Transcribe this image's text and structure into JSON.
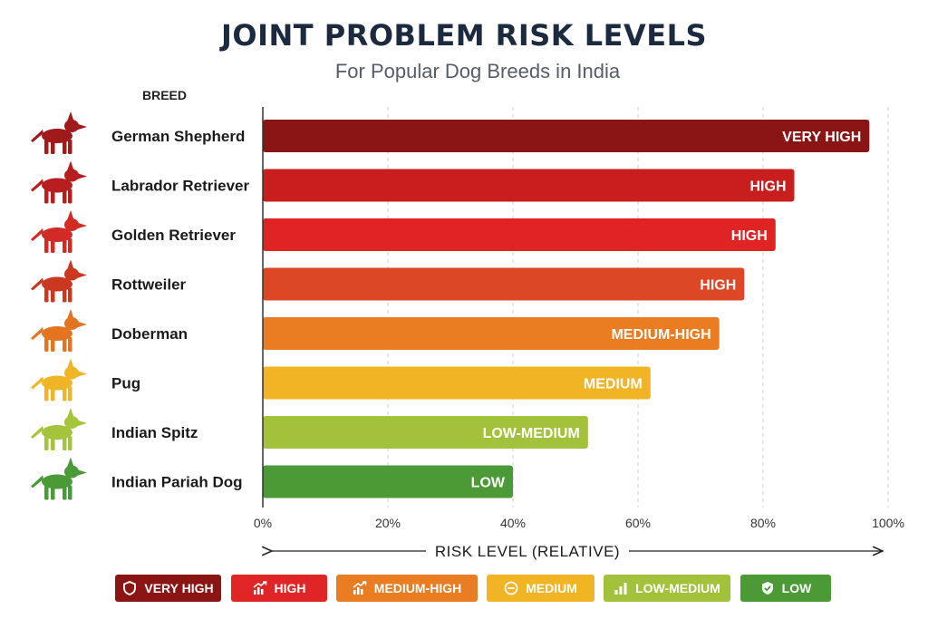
{
  "title": "JOINT PROBLEM RISK LEVELS",
  "subtitle": "For Popular Dog Breeds in India",
  "breed_header": "BREED",
  "colors": {
    "very_high": "#8b1414",
    "high_1": "#c81e1e",
    "high_2": "#e02424",
    "high_3": "#dc4726",
    "medium_high": "#ea7d22",
    "medium": "#f1b425",
    "low_medium": "#a2c23c",
    "low": "#4c9a36"
  },
  "chart_data": {
    "type": "bar",
    "orientation": "horizontal",
    "categories": [
      "German Shepherd",
      "Labrador Retriever",
      "Golden Retriever",
      "Rottweiler",
      "Doberman",
      "Pug",
      "Indian Spitz",
      "Indian Pariah Dog"
    ],
    "values": [
      97,
      85,
      82,
      77,
      73,
      62,
      52,
      40
    ],
    "bar_labels": [
      "VERY HIGH",
      "HIGH",
      "HIGH",
      "HIGH",
      "MEDIUM-HIGH",
      "MEDIUM",
      "LOW-MEDIUM",
      "LOW"
    ],
    "bar_colors": [
      "#8b1414",
      "#c81e1e",
      "#e02424",
      "#dc4726",
      "#ea7d22",
      "#f1b425",
      "#a2c23c",
      "#4c9a36"
    ],
    "breed_icon_colors": [
      "#a0191b",
      "#b81d1f",
      "#d22a24",
      "#c9381f",
      "#e27422",
      "#f0b527",
      "#a4c43c",
      "#4a9a37"
    ],
    "xlim": [
      0,
      100
    ],
    "xticks": [
      "0%",
      "20%",
      "40%",
      "60%",
      "80%",
      "100%"
    ],
    "xtick_values": [
      0,
      20,
      40,
      60,
      80,
      100
    ],
    "xlabel": "RISK LEVEL (RELATIVE)",
    "grid": "vertical dashed",
    "legend_position": "bottom"
  },
  "legend": [
    {
      "label": "VERY HIGH",
      "color": "#8b1414",
      "icon": "shield-icon"
    },
    {
      "label": "HIGH",
      "color": "#df2525",
      "icon": "trend-up-icon"
    },
    {
      "label": "MEDIUM-HIGH",
      "color": "#ea7d22",
      "icon": "trend-up-icon"
    },
    {
      "label": "MEDIUM",
      "color": "#f1b425",
      "icon": "minus-circle-icon"
    },
    {
      "label": "LOW-MEDIUM",
      "color": "#a2c23c",
      "icon": "bar-chart-icon"
    },
    {
      "label": "LOW",
      "color": "#4c9a36",
      "icon": "shield-check-icon"
    }
  ]
}
